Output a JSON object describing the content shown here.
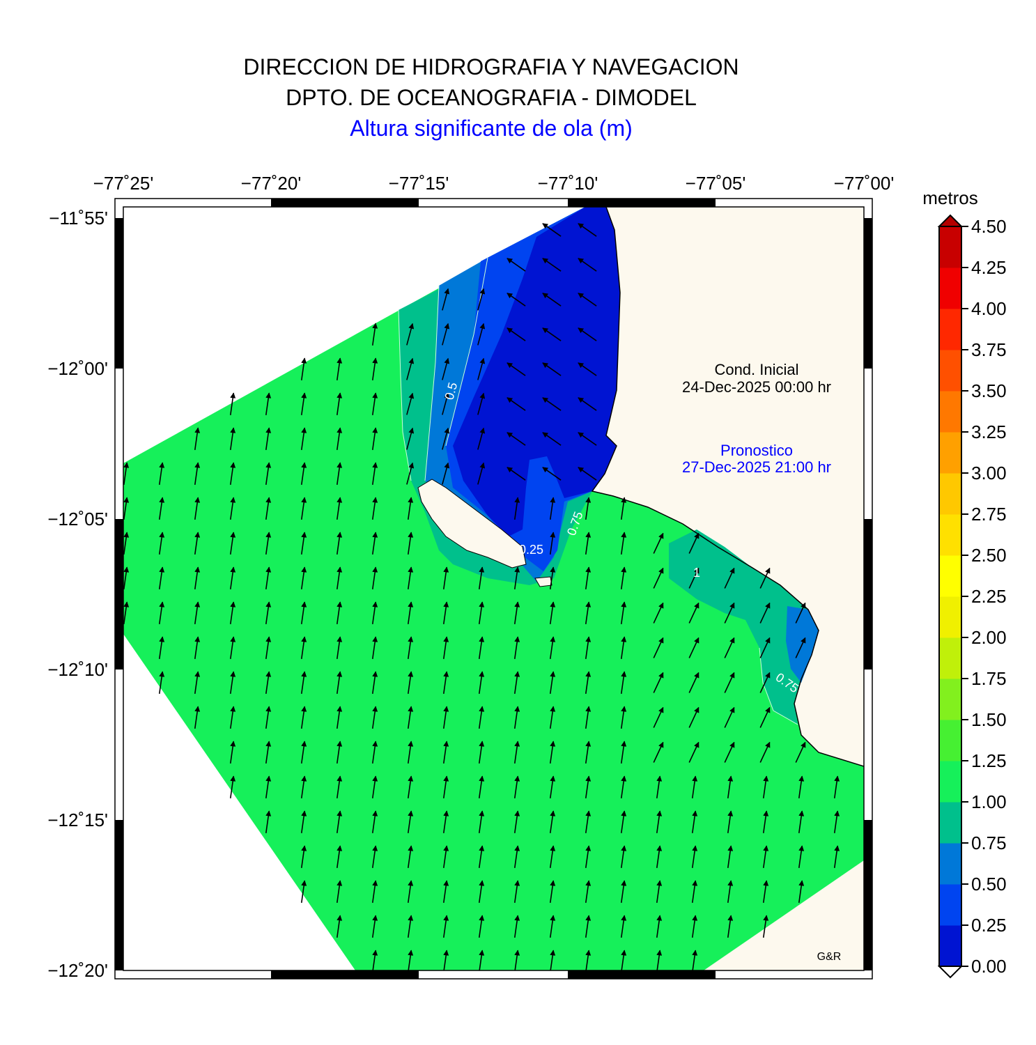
{
  "header": {
    "line1": "DIRECCION DE HIDROGRAFIA Y NAVEGACION",
    "line2": "DPTO. DE OCEANOGRAFIA - DIMODEL",
    "line3": "Altura significante de ola (m)"
  },
  "axes": {
    "lon_labels": [
      "−77˚25'",
      "−77˚20'",
      "−77˚15'",
      "−77˚10'",
      "−77˚05'",
      "−77˚00'"
    ],
    "lat_labels": [
      "−11˚55'",
      "−12˚00'",
      "−12˚05'",
      "−12˚10'",
      "−12˚15'",
      "−12˚20'"
    ]
  },
  "annotations": {
    "initial_label": "Cond. Inicial",
    "initial_time": "24-Dec-2025 00:00 hr",
    "forecast_label": "Pronostico",
    "forecast_time": "27-Dec-2025 21:00 hr",
    "credit": "G&R"
  },
  "contour_labels": [
    "0.5",
    "0.75",
    "0.25",
    "0.75",
    "1",
    "0.75"
  ],
  "colorbar": {
    "unit": "metros",
    "ticks": [
      "4.50",
      "4.25",
      "4.00",
      "3.75",
      "3.50",
      "3.25",
      "3.00",
      "2.75",
      "2.50",
      "2.25",
      "2.00",
      "1.75",
      "1.50",
      "1.25",
      "1.00",
      "0.75",
      "0.50",
      "0.25",
      "0.00"
    ],
    "colors": [
      "#0014d2",
      "#0044f0",
      "#0078d8",
      "#00c08c",
      "#16f05a",
      "#46f032",
      "#82f01e",
      "#c0f00a",
      "#f0f000",
      "#ffff00",
      "#ffe000",
      "#ffc800",
      "#ffa000",
      "#ff7800",
      "#ff5000",
      "#ff2800",
      "#f00000",
      "#c80000"
    ]
  },
  "map_colors": {
    "land": "#fdf9ee",
    "sea_green": "#16f05a",
    "sea_teal": "#00c08c",
    "sea_mid": "#0078d8",
    "sea_blue": "#0044f0",
    "sea_deep": "#0014d2"
  }
}
